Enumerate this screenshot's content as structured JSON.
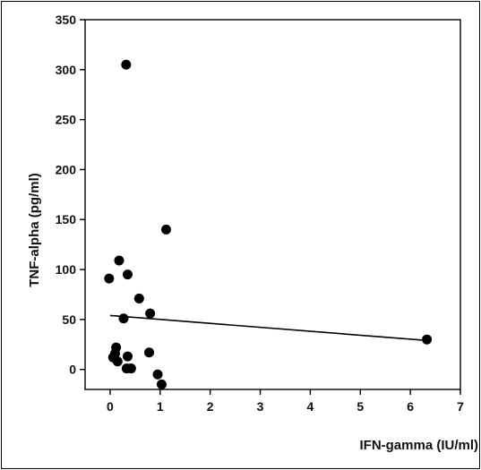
{
  "chart_data": {
    "type": "scatter",
    "title": "",
    "xlabel": "IFN-gamma (IU/ml)",
    "ylabel": "TNF-alpha (pg/ml)",
    "xlim": [
      -0.5,
      7
    ],
    "ylim": [
      -20,
      350
    ],
    "x_ticks": [
      0,
      1,
      2,
      3,
      4,
      5,
      6,
      7
    ],
    "y_ticks": [
      0,
      50,
      100,
      150,
      200,
      250,
      300,
      350
    ],
    "grid": false,
    "legend": "none",
    "points": [
      {
        "x": 0.32,
        "y": 305
      },
      {
        "x": 1.12,
        "y": 140
      },
      {
        "x": 0.18,
        "y": 109
      },
      {
        "x": 0.35,
        "y": 95
      },
      {
        "x": -0.02,
        "y": 91
      },
      {
        "x": 0.58,
        "y": 71
      },
      {
        "x": 0.8,
        "y": 56
      },
      {
        "x": 0.27,
        "y": 51
      },
      {
        "x": 0.12,
        "y": 22
      },
      {
        "x": 0.1,
        "y": 16
      },
      {
        "x": 0.06,
        "y": 12
      },
      {
        "x": 0.15,
        "y": 8
      },
      {
        "x": 0.35,
        "y": 13
      },
      {
        "x": 0.78,
        "y": 17
      },
      {
        "x": 0.33,
        "y": 1
      },
      {
        "x": 0.42,
        "y": 1
      },
      {
        "x": 0.95,
        "y": -5
      },
      {
        "x": 1.03,
        "y": -15
      },
      {
        "x": 6.33,
        "y": 30
      }
    ],
    "trendline": {
      "x": [
        0.0,
        6.33
      ],
      "y": [
        54,
        29
      ]
    },
    "colors": {
      "marker": "#000000",
      "line": "#000000",
      "axis": "#000000",
      "background": "#ffffff"
    }
  }
}
